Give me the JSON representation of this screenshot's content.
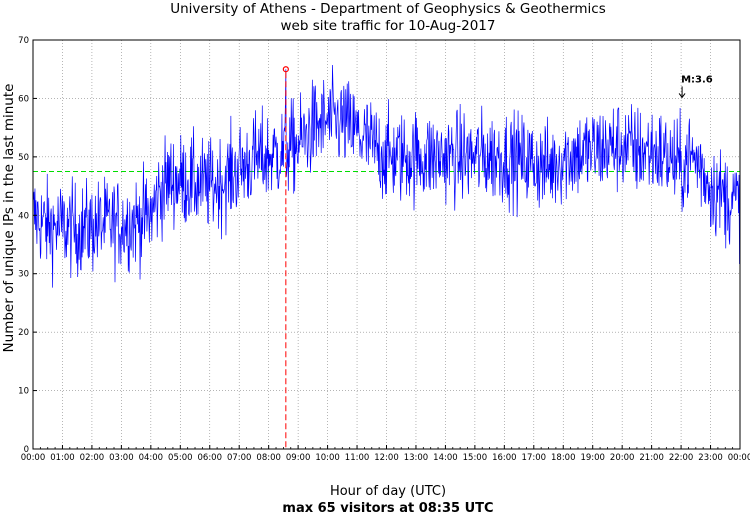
{
  "chart_data": {
    "type": "line",
    "title": "University of Athens - Department of Geophysics & Geothermics",
    "subtitle": "web site traffic for 10-Aug-2017",
    "xlabel": "Hour of day (UTC)",
    "ylabel": "Number of unique IPs in the last minute",
    "footer": "max 65 visitors at 08:35 UTC",
    "xlim": [
      0,
      24
    ],
    "ylim": [
      0,
      70
    ],
    "grid": true,
    "x_ticks": [
      "00:00",
      "01:00",
      "02:00",
      "03:00",
      "04:00",
      "05:00",
      "06:00",
      "07:00",
      "08:00",
      "09:00",
      "10:00",
      "11:00",
      "12:00",
      "13:00",
      "14:00",
      "15:00",
      "16:00",
      "17:00",
      "18:00",
      "19:00",
      "20:00",
      "21:00",
      "22:00",
      "23:00",
      "00:00"
    ],
    "y_ticks": [
      0,
      10,
      20,
      30,
      40,
      50,
      60,
      70
    ],
    "series": [
      {
        "color": "#0000ff",
        "hourly_level": [
          [
            0.0,
            40
          ],
          [
            0.5,
            38
          ],
          [
            1.0,
            38
          ],
          [
            1.5,
            37.5
          ],
          [
            2.0,
            38
          ],
          [
            2.5,
            38.5
          ],
          [
            3.0,
            38.5
          ],
          [
            3.5,
            39
          ],
          [
            4.0,
            40
          ],
          [
            4.3,
            44
          ],
          [
            4.6,
            46
          ],
          [
            5.0,
            46
          ],
          [
            5.5,
            45.5
          ],
          [
            6.0,
            45
          ],
          [
            6.5,
            46
          ],
          [
            7.0,
            48
          ],
          [
            7.5,
            49.5
          ],
          [
            8.0,
            50
          ],
          [
            8.5,
            51
          ],
          [
            9.0,
            52
          ],
          [
            9.5,
            55
          ],
          [
            10.0,
            56
          ],
          [
            10.5,
            56
          ],
          [
            11.0,
            54
          ],
          [
            11.5,
            52
          ],
          [
            12.0,
            50
          ],
          [
            13.0,
            50
          ],
          [
            14.0,
            50
          ],
          [
            15.0,
            50
          ],
          [
            16.0,
            50
          ],
          [
            17.0,
            49
          ],
          [
            17.5,
            48
          ],
          [
            18.0,
            50
          ],
          [
            19.0,
            51
          ],
          [
            20.0,
            52
          ],
          [
            20.5,
            51
          ],
          [
            21.0,
            51
          ],
          [
            21.5,
            50
          ],
          [
            22.0,
            48
          ],
          [
            22.3,
            50
          ],
          [
            22.6,
            49
          ],
          [
            23.0,
            45
          ],
          [
            23.5,
            43
          ],
          [
            24.0,
            42
          ]
        ],
        "noise_amplitude": 4
      }
    ],
    "mean_line": {
      "y": 47.5,
      "color": "#00dd00"
    },
    "max_marker": {
      "x": 8.583,
      "y": 65,
      "color": "#ff0000"
    },
    "annotation": {
      "text": "M:3.6",
      "x": 22.0,
      "y": 60,
      "arrow": true
    }
  }
}
